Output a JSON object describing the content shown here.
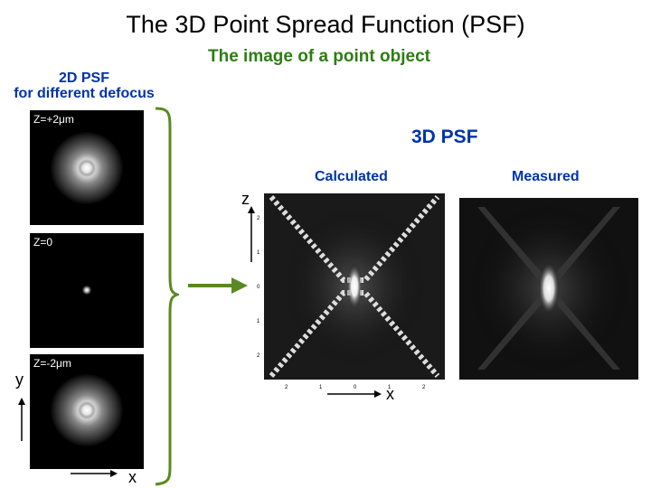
{
  "title": "The 3D Point Spread Function (PSF)",
  "subtitle": "The image of a point object",
  "psf2d": {
    "title": "2D PSF\nfor different defocus",
    "panels": [
      {
        "label": "Z=+2μm"
      },
      {
        "label": "Z=0"
      },
      {
        "label": "Z=-2μm"
      }
    ],
    "axis_y": "y",
    "axis_x": "x"
  },
  "psf3d": {
    "title": "3D PSF",
    "calculated_label": "Calculated",
    "measured_label": "Measured",
    "axis_z": "z",
    "axis_x": "x",
    "z_ticks": [
      "2",
      "1",
      "0",
      "1",
      "2"
    ],
    "x_ticks": [
      "2",
      "1",
      "0",
      "1",
      "2"
    ]
  },
  "colors": {
    "bracket": "#5a8a1e",
    "arrow": "#5a8a1e",
    "subtitle": "#2e7d14",
    "labels": "#0033aa"
  }
}
